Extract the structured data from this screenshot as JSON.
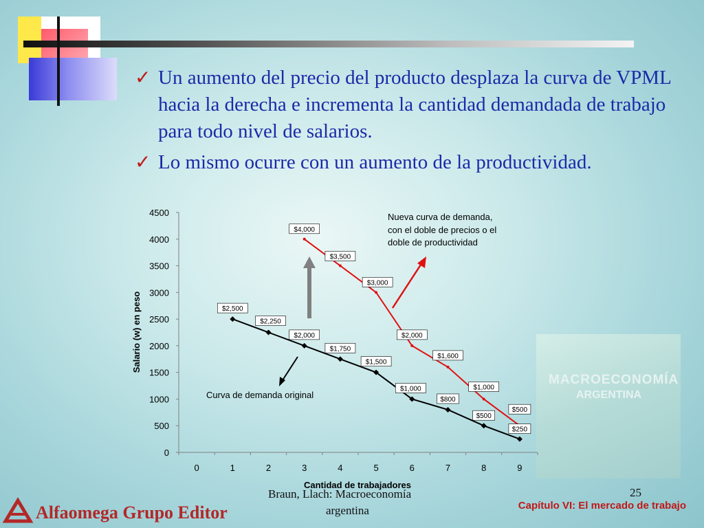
{
  "bullets": [
    "Un aumento del precio del producto desplaza la curva de VPML hacia la derecha e incrementa la cantidad demandada de trabajo para todo nivel de salarios.",
    "Lo mismo ocurre con un aumento de la productividad."
  ],
  "book_cover": {
    "title": "MACROECONOMÍA",
    "subtitle": "ARGENTINA"
  },
  "chart_data": {
    "type": "line",
    "xlabel": "Cantidad de trabajadores",
    "ylabel": "Salario (w) en peso",
    "xlim": [
      0,
      9
    ],
    "ylim": [
      0,
      4500
    ],
    "x_ticks": [
      "0",
      "1",
      "2",
      "3",
      "4",
      "5",
      "6",
      "7",
      "8",
      "9"
    ],
    "y_ticks": [
      "0",
      "500",
      "1000",
      "1500",
      "2000",
      "2500",
      "3000",
      "3500",
      "4000",
      "4500"
    ],
    "series": [
      {
        "color": "#000000",
        "x": [
          1,
          2,
          3,
          4,
          5,
          6,
          7,
          8,
          9
        ],
        "y": [
          2500,
          2250,
          2000,
          1750,
          1500,
          1000,
          800,
          500,
          250
        ],
        "labels": [
          "$2,500",
          "$2,250",
          "$2,000",
          "$1,750",
          "$1,500",
          "$1,000",
          "$800",
          "$500",
          "$250"
        ]
      },
      {
        "color": "#e01010",
        "x": [
          3,
          4,
          5,
          6,
          7,
          8,
          9
        ],
        "y": [
          4000,
          3500,
          3000,
          2000,
          1600,
          1000,
          500
        ],
        "labels": [
          "$4,000",
          "$3,500",
          "$3,000",
          "$2,000",
          "$1,600",
          "$1,000",
          "$500"
        ]
      }
    ],
    "annotations": [
      {
        "text": "Curva de demanda original"
      },
      {
        "lines": [
          "Nueva curva de demanda,",
          "con el doble de precios o el",
          "doble de productividad"
        ]
      }
    ]
  },
  "footer": {
    "author": "Braun, Llach: Macroeconomía",
    "author_line2": "argentina",
    "page_number": "25",
    "chapter": "Capítulo VI: El mercado de trabajo",
    "publisher": "Alfaomega Grupo Editor"
  }
}
